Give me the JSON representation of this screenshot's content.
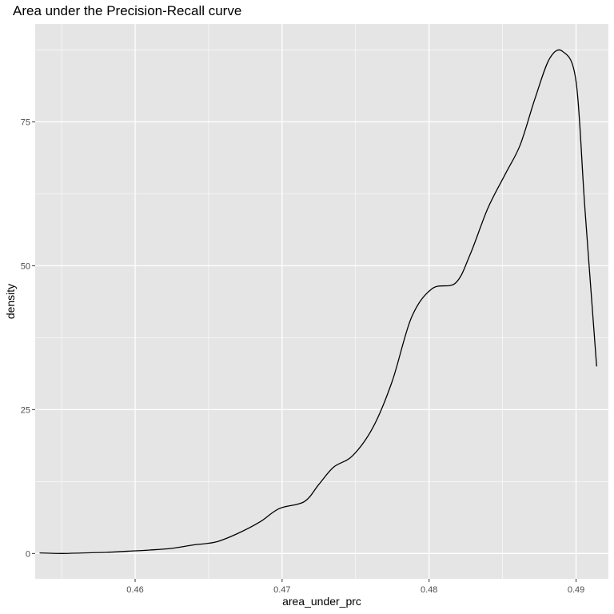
{
  "chart_data": {
    "type": "line",
    "title": "Area under the Precision-Recall curve",
    "xlabel": "area_under_prc",
    "ylabel": "density",
    "xlim": [
      0.4532,
      0.4922
    ],
    "ylim": [
      -4.4,
      92.0
    ],
    "x_ticks": [
      0.46,
      0.47,
      0.48,
      0.49
    ],
    "x_tick_labels": [
      "0.46",
      "0.47",
      "0.48",
      "0.49"
    ],
    "y_ticks": [
      0,
      25,
      50,
      75
    ],
    "y_tick_labels": [
      "0",
      "25",
      "50",
      "75"
    ],
    "grid": true,
    "legend": "none",
    "colors": {
      "panel": "#e5e5e5",
      "grid_major": "#ffffff",
      "line": "#000000"
    },
    "series": [
      {
        "x": [
          0.4535,
          0.455,
          0.4565,
          0.458,
          0.4595,
          0.461,
          0.4625,
          0.464,
          0.4655,
          0.467,
          0.4685,
          0.4698,
          0.4715,
          0.4725,
          0.4735,
          0.4748,
          0.4762,
          0.4775,
          0.4788,
          0.4802,
          0.4818,
          0.4828,
          0.484,
          0.4852,
          0.4862,
          0.4872,
          0.4882,
          0.4891,
          0.49,
          0.4906,
          0.4914
        ],
        "y": [
          0.1,
          0.0,
          0.1,
          0.2,
          0.4,
          0.6,
          0.9,
          1.5,
          2.0,
          3.5,
          5.5,
          7.8,
          9.0,
          12.0,
          15.0,
          17.0,
          22.0,
          30.0,
          41.0,
          46.0,
          47.0,
          52.0,
          60.0,
          66.0,
          71.0,
          79.0,
          86.0,
          87.2,
          82.0,
          60.0,
          32.5
        ]
      }
    ]
  }
}
